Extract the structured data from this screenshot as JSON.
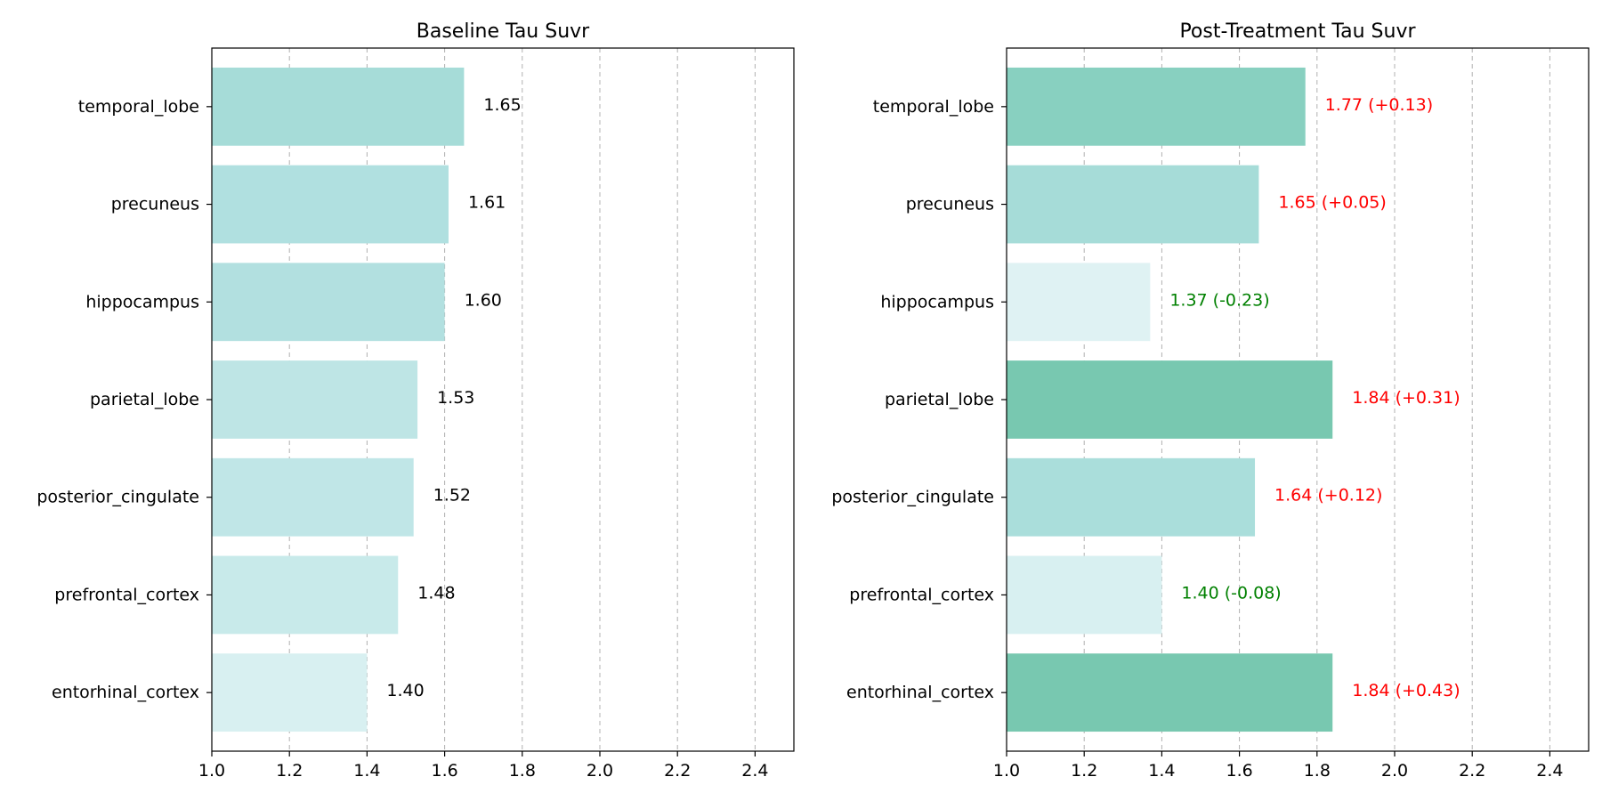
{
  "chart_data": [
    {
      "type": "bar",
      "orientation": "horizontal",
      "title": "Baseline Tau Suvr",
      "xlabel": "",
      "ylabel": "",
      "xlim": [
        1.0,
        2.5
      ],
      "xticks": [
        "1.0",
        "1.2",
        "1.4",
        "1.6",
        "1.8",
        "2.0",
        "2.2",
        "2.4"
      ],
      "grid": "x-dashed",
      "categories": [
        "temporal_lobe",
        "precuneus",
        "hippocampus",
        "parietal_lobe",
        "posterior_cingulate",
        "prefrontal_cortex",
        "entorhinal_cortex"
      ],
      "values": [
        1.65,
        1.61,
        1.6,
        1.53,
        1.52,
        1.48,
        1.4
      ],
      "labels": [
        "1.65",
        "1.61",
        "1.60",
        "1.53",
        "1.52",
        "1.48",
        "1.40"
      ],
      "colors": [
        "#a6dcd8",
        "#b0e0e0",
        "#b2e0e0",
        "#bee5e5",
        "#c0e6e7",
        "#c8eaea",
        "#d8f0f1"
      ],
      "label_color": "#000000"
    },
    {
      "type": "bar",
      "orientation": "horizontal",
      "title": "Post-Treatment Tau Suvr",
      "xlabel": "",
      "ylabel": "",
      "xlim": [
        1.0,
        2.5
      ],
      "xticks": [
        "1.0",
        "1.2",
        "1.4",
        "1.6",
        "1.8",
        "2.0",
        "2.2",
        "2.4"
      ],
      "grid": "x-dashed",
      "categories": [
        "temporal_lobe",
        "precuneus",
        "hippocampus",
        "parietal_lobe",
        "posterior_cingulate",
        "prefrontal_cortex",
        "entorhinal_cortex"
      ],
      "values": [
        1.77,
        1.65,
        1.37,
        1.84,
        1.64,
        1.4,
        1.84
      ],
      "changes": [
        0.13,
        0.05,
        -0.23,
        0.31,
        0.12,
        -0.08,
        0.43
      ],
      "labels": [
        "1.77 (+0.13)",
        "1.65 (+0.05)",
        "1.37 (-0.23)",
        "1.84 (+0.31)",
        "1.64 (+0.12)",
        "1.40 (-0.08)",
        "1.84 (+0.43)"
      ],
      "colors": [
        "#88d0c0",
        "#a6dcd8",
        "#dff2f3",
        "#78c8b0",
        "#aadedb",
        "#d8f0f1",
        "#78c8b0"
      ],
      "increase_color": "#ff0000",
      "decrease_color": "#008000"
    }
  ]
}
